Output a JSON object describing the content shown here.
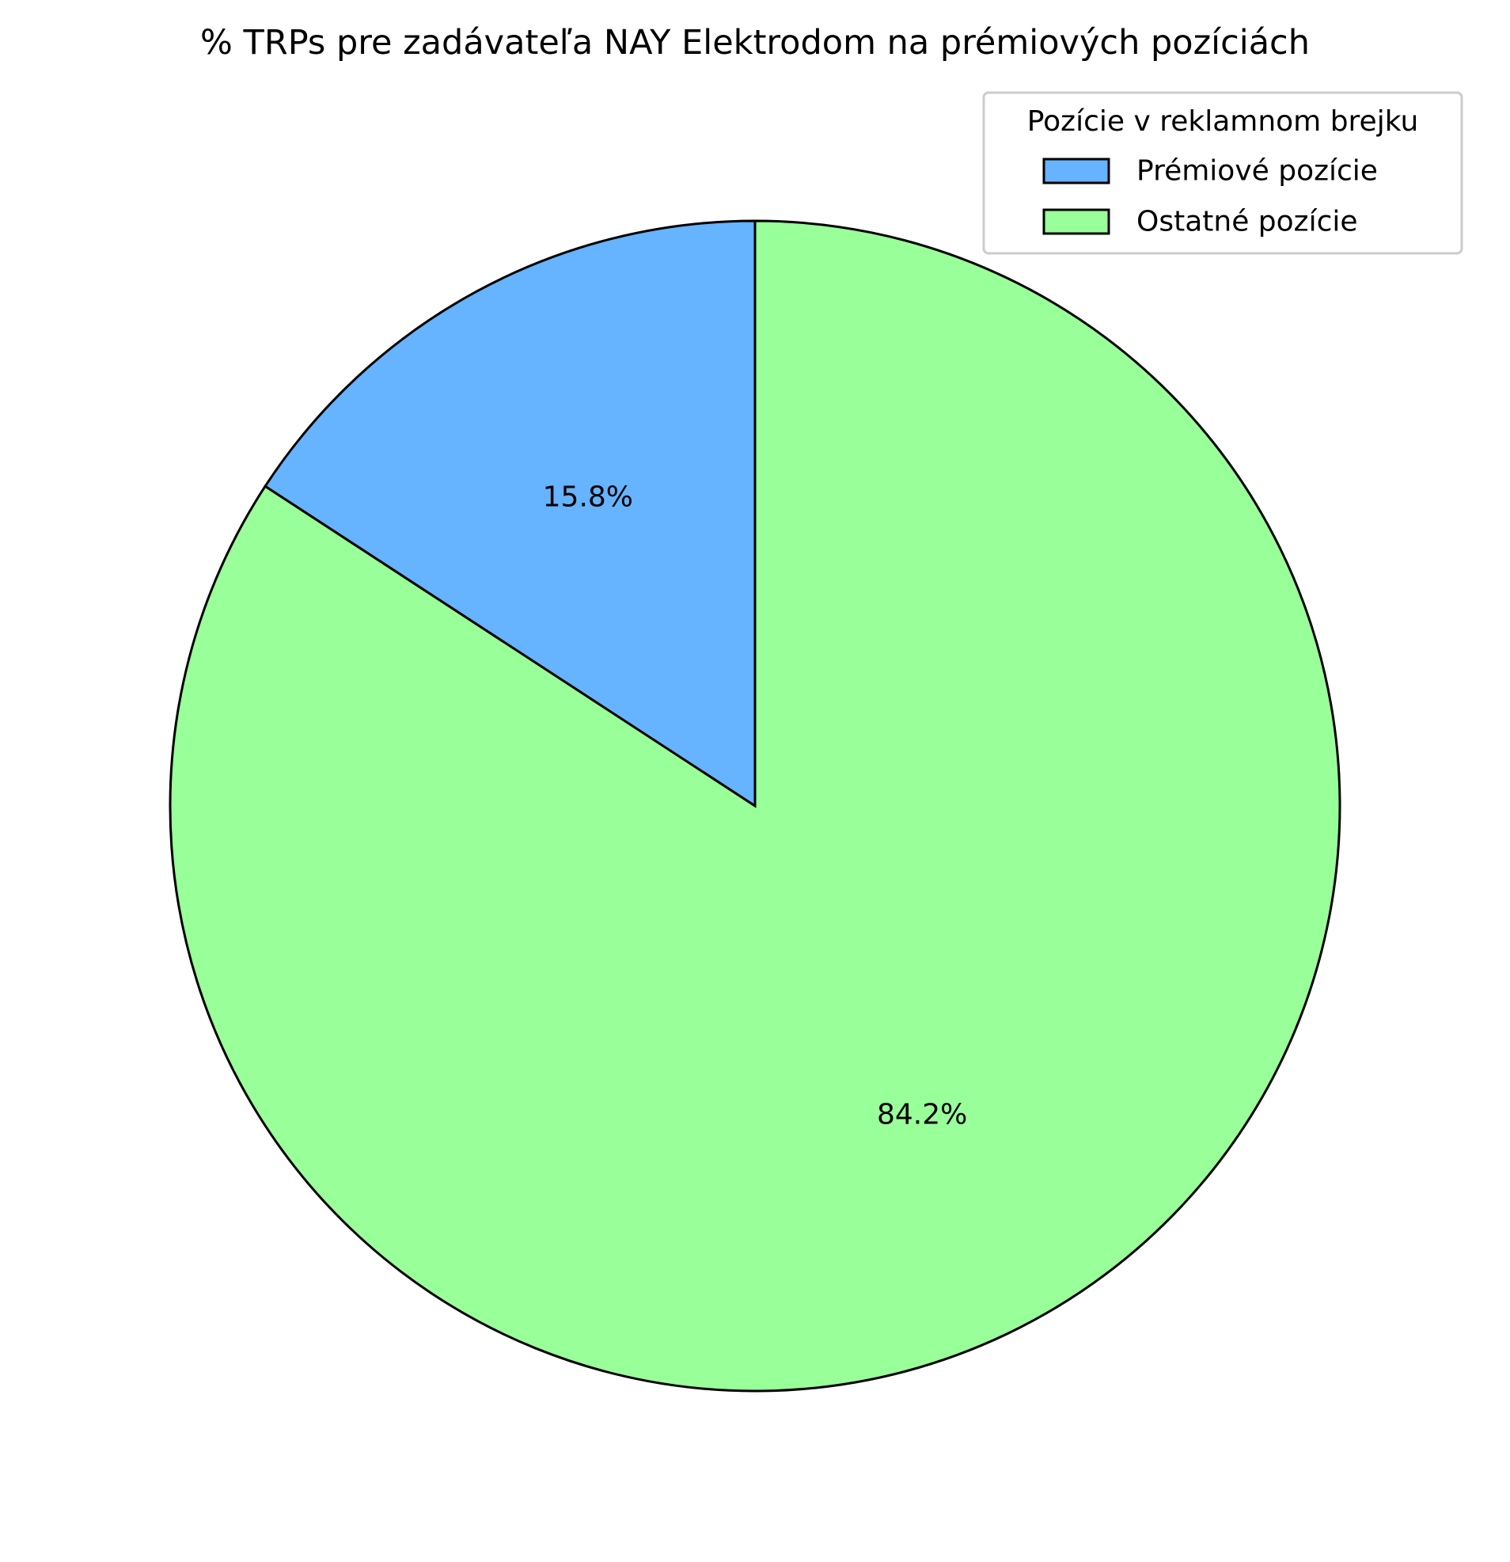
{
  "chart_data": {
    "type": "pie",
    "title": "% TRPs pre zadávateľa NAY Elektrodom na prémiových pozíciách",
    "start_angle_deg": 90,
    "direction": "counterclockwise",
    "slices": [
      {
        "label": "Prémiové pozície",
        "value": 15.8,
        "display": "15.8%",
        "color": "#66b3ff"
      },
      {
        "label": "Ostatné pozície",
        "value": 84.2,
        "display": "84.2%",
        "color": "#99ff99"
      }
    ],
    "legend": {
      "title": "Pozície v reklamnom brejku",
      "placement": "top-right"
    },
    "edge_color": "#000000"
  }
}
